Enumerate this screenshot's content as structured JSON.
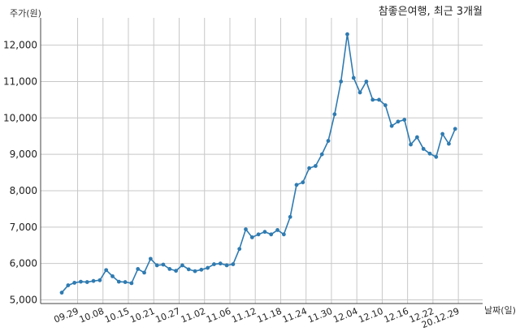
{
  "chart_data": {
    "type": "line",
    "title": "참좋은여행, 최근 3개월",
    "ylabel": "주가(원)",
    "xlabel": "날짜(일)",
    "ylim": [
      4900,
      12750
    ],
    "yticks": [
      5000,
      6000,
      7000,
      8000,
      9000,
      10000,
      11000,
      12000
    ],
    "ytick_labels": [
      "5,000",
      "6,000",
      "7,000",
      "8,000",
      "9,000",
      "10,000",
      "11,000",
      "12,000"
    ],
    "xticks": [
      "09.29",
      "10.08",
      "10.15",
      "10.21",
      "10.27",
      "11.02",
      "11.06",
      "11.12",
      "11.18",
      "11.24",
      "11.30",
      "12.04",
      "12.10",
      "12.16",
      "12.22",
      "20.12.29"
    ],
    "xtick_positions": [
      2.5,
      6.5,
      10.5,
      14.5,
      18.5,
      22.5,
      26.5,
      30.5,
      34.5,
      38.5,
      42.5,
      46.5,
      50.5,
      54.5,
      58.5,
      62.5
    ],
    "grid": true,
    "color": "#2f7bb1",
    "series": [
      {
        "values": [
          5200,
          5400,
          5470,
          5500,
          5490,
          5520,
          5540,
          5820,
          5650,
          5500,
          5490,
          5460,
          5850,
          5750,
          6130,
          5950,
          5970,
          5850,
          5800,
          5950,
          5840,
          5790,
          5830,
          5880,
          5980,
          6000,
          5950,
          5980,
          6400,
          6940,
          6720,
          6800,
          6870,
          6800,
          6920,
          6800,
          7280,
          8160,
          8230,
          8620,
          8680,
          9000,
          9370,
          10100,
          11000,
          12300,
          11100,
          10700,
          11000,
          10500,
          10500,
          10350,
          9780,
          9900,
          9950,
          9270,
          9470,
          9150,
          9020,
          8930,
          9560,
          9290,
          9700
        ]
      }
    ]
  }
}
